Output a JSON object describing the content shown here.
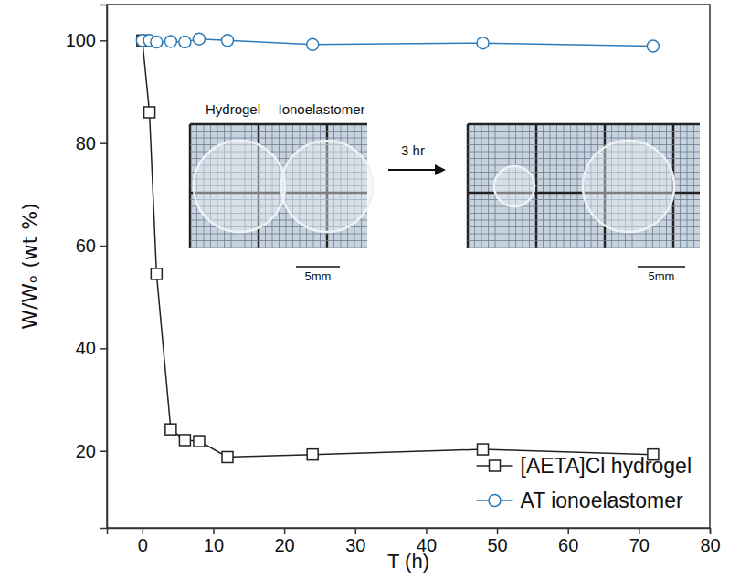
{
  "chart_data": {
    "type": "line",
    "x_label": "T (h)",
    "y_label": "W/Wₒ (wt %)",
    "x": [
      0,
      1,
      2,
      4,
      6,
      8,
      12,
      24,
      48,
      72
    ],
    "series": [
      {
        "name": "[AETA]Cl hydrogel",
        "color": "#222222",
        "marker": "square",
        "line_style": "solid",
        "values": [
          100,
          86,
          54.5,
          24.2,
          22.1,
          21.9,
          18.8,
          19.3,
          20.3,
          19.3
        ]
      },
      {
        "name": "AT ionoelastomer",
        "color": "#2b7bba",
        "marker": "circle",
        "line_style": "solid",
        "values": [
          100,
          100,
          99.7,
          99.8,
          99.7,
          100.3,
          100,
          99.2,
          99.5,
          98.9
        ]
      }
    ],
    "xlim": [
      -5,
      80
    ],
    "xticks": [
      0,
      10,
      20,
      30,
      40,
      50,
      60,
      70,
      80
    ],
    "ylim": [
      5,
      107
    ],
    "yticks": [
      20,
      40,
      60,
      80,
      100
    ],
    "grid": false,
    "legend": "lower right",
    "annotations": [
      "Hydrogel",
      "Ionoelastomer",
      "3 hr",
      "5mm",
      "5mm"
    ]
  }
}
